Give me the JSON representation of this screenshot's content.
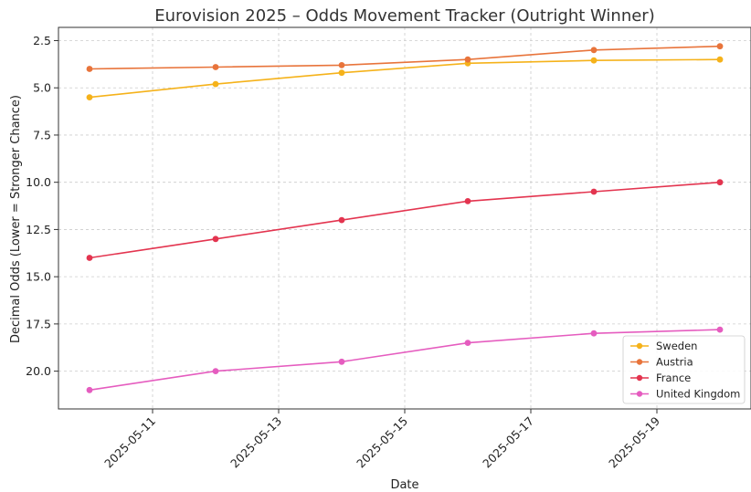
{
  "chart_data": {
    "type": "line",
    "title": "Eurovision 2025 – Odds Movement Tracker (Outright Winner)",
    "xlabel": "Date",
    "ylabel": "Decimal Odds (Lower = Stronger Chance)",
    "x": [
      "2025-05-10",
      "2025-05-12",
      "2025-05-14",
      "2025-05-16",
      "2025-05-18",
      "2025-05-20"
    ],
    "x_ticks": [
      "2025-05-11",
      "2025-05-13",
      "2025-05-15",
      "2025-05-17",
      "2025-05-19"
    ],
    "y_ticks": [
      "2.5",
      "5.0",
      "7.5",
      "10.0",
      "12.5",
      "15.0",
      "17.5",
      "20.0"
    ],
    "y_tick_values": [
      2.5,
      5.0,
      7.5,
      10.0,
      12.5,
      15.0,
      17.5,
      20.0
    ],
    "ylim": [
      22.0,
      1.8
    ],
    "y_inverted": true,
    "grid": true,
    "legend_position": "lower-right",
    "series": [
      {
        "name": "Sweden",
        "color": "#f5b21a",
        "values": [
          5.5,
          4.8,
          4.2,
          3.7,
          3.55,
          3.5
        ]
      },
      {
        "name": "Austria",
        "color": "#e8743b",
        "values": [
          4.0,
          3.9,
          3.8,
          3.5,
          3.0,
          2.8
        ]
      },
      {
        "name": "France",
        "color": "#e3344f",
        "values": [
          14.0,
          13.0,
          12.0,
          11.0,
          10.5,
          10.0
        ]
      },
      {
        "name": "United Kingdom",
        "color": "#e55cbf",
        "values": [
          21.0,
          20.0,
          19.5,
          18.5,
          18.0,
          17.8
        ]
      }
    ]
  }
}
